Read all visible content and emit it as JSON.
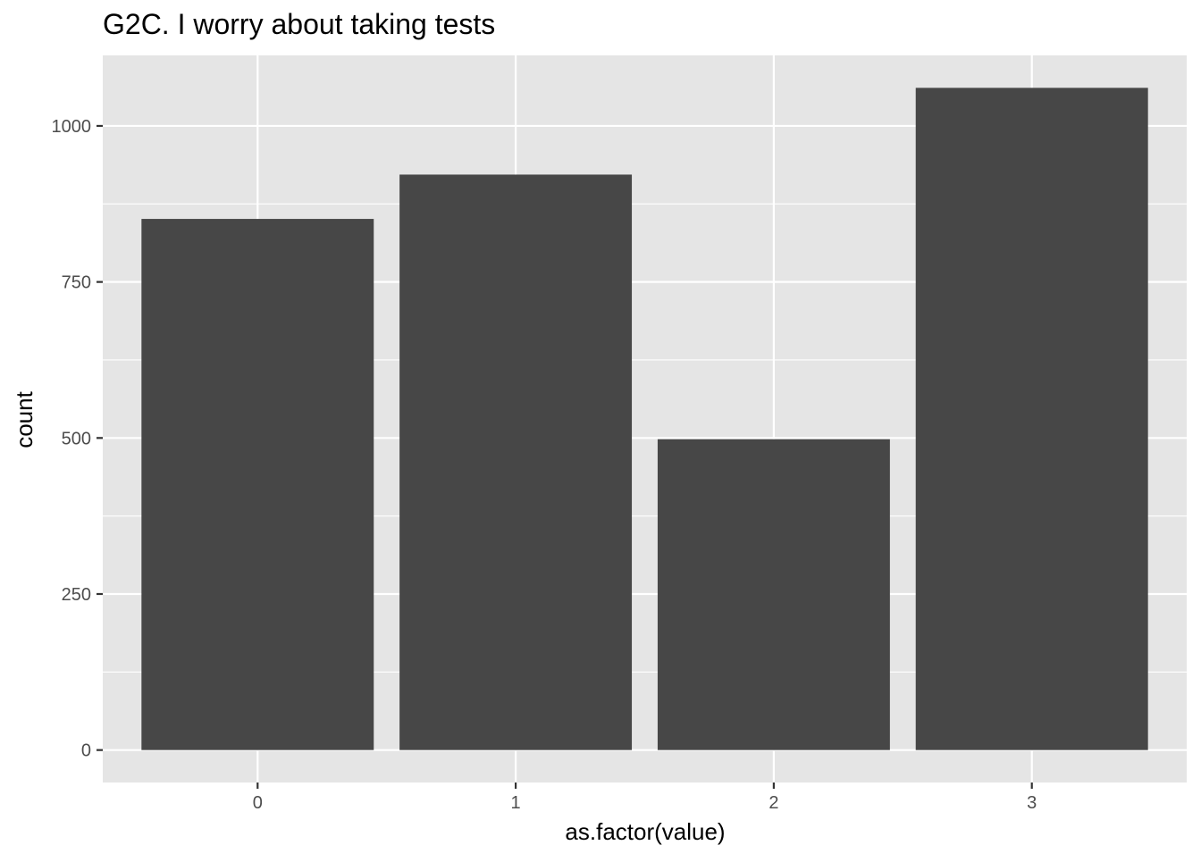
{
  "chart_data": {
    "type": "bar",
    "title": "G2C. I worry about taking tests",
    "xlabel": "as.factor(value)",
    "ylabel": "count",
    "categories": [
      "0",
      "1",
      "2",
      "3"
    ],
    "values": [
      851,
      922,
      498,
      1061
    ],
    "ylim": [
      -52,
      1113
    ],
    "yticks": [
      0,
      250,
      500,
      750,
      1000
    ],
    "ytick_labels": [
      "0",
      "250",
      "500",
      "750",
      "1000"
    ],
    "grid": true,
    "legend": "none",
    "colors": {
      "panel_background": "#e5e5e5",
      "grid_line": "#ffffff",
      "bar_fill": "#474747",
      "tick_color": "#333333",
      "tick_label_color": "#4d4d4d"
    }
  }
}
